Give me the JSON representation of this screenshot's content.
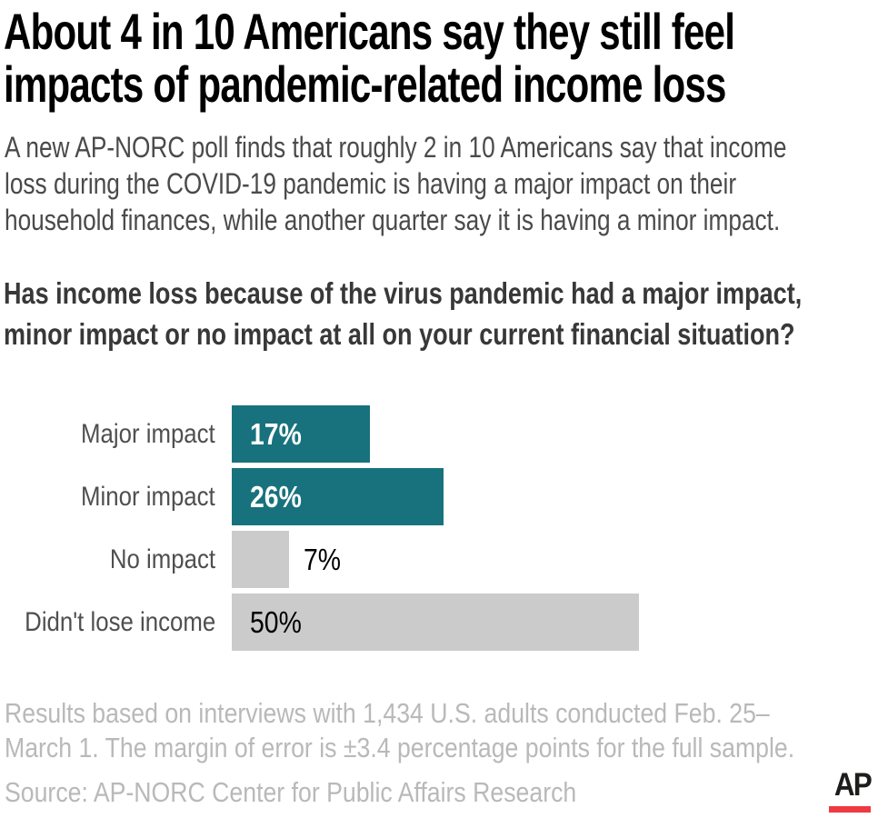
{
  "colors": {
    "teal": "#17727d",
    "bar_gray": "#cbcbcb",
    "title_black": "#000000",
    "subtitle_gray": "#4a4a4a",
    "question_gray": "#383838",
    "category_gray": "#4f4f4f",
    "note_gray": "#b9b9b9",
    "logo_black": "#1d1d1b",
    "logo_red": "#ee3a43"
  },
  "header": {
    "title_lines": [
      "About 4 in 10 Americans say they still feel",
      "impacts of pandemic-related income loss"
    ],
    "subtitle_lines": [
      "A new AP-NORC poll finds that roughly 2 in 10 Americans say that income",
      "loss during the COVID-19 pandemic is having a major impact on their",
      "household finances, while another quarter say it is having a minor impact."
    ]
  },
  "question": {
    "lines": [
      "Has income loss because of the virus pandemic had a major impact,",
      "minor impact or no impact at all on your current financial situation?"
    ]
  },
  "chart_data": {
    "type": "bar",
    "orientation": "horizontal",
    "grid": false,
    "legend": false,
    "categories": [
      "Major impact",
      "Minor impact",
      "No impact",
      "Didn't lose income"
    ],
    "values": [
      17,
      26,
      7,
      50
    ],
    "bars": [
      {
        "category": "Major impact",
        "value": 17,
        "value_label": "17%",
        "bar_color": "#17727d",
        "value_color": "#ffffff",
        "value_bold": true,
        "value_inside": true
      },
      {
        "category": "Minor impact",
        "value": 26,
        "value_label": "26%",
        "bar_color": "#17727d",
        "value_color": "#ffffff",
        "value_bold": true,
        "value_inside": true
      },
      {
        "category": "No impact",
        "value": 7,
        "value_label": "7%",
        "bar_color": "#cbcbcb",
        "value_color": "#000000",
        "value_bold": false,
        "value_inside": false
      },
      {
        "category": "Didn't lose income",
        "value": 50,
        "value_label": "50%",
        "bar_color": "#cbcbcb",
        "value_color": "#000000",
        "value_bold": false,
        "value_inside": true
      }
    ]
  },
  "notes": {
    "lines": [
      "Results based on interviews with 1,434 U.S. adults conducted Feb. 25–",
      "March 1. The margin of error is ±3.4 percentage points for the full sample."
    ]
  },
  "source": {
    "text": "Source: AP-NORC Center for Public Affairs Research"
  },
  "logo": {
    "text": "AP"
  }
}
